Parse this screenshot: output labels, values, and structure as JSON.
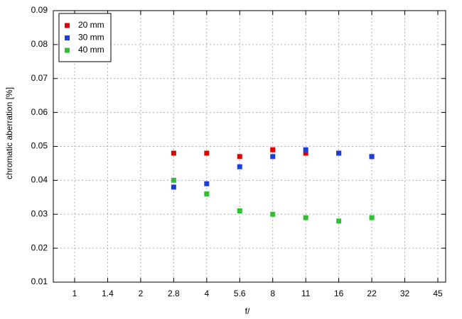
{
  "chart_data": {
    "type": "scatter",
    "x_label": "f/",
    "y_label": "chromatic aberration [%]",
    "categories": [
      "1",
      "1.4",
      "2",
      "2.8",
      "4",
      "5.6",
      "8",
      "11",
      "16",
      "22",
      "32",
      "45"
    ],
    "series": [
      {
        "name": "20 mm",
        "color": "#e00000",
        "values": [
          null,
          null,
          null,
          0.048,
          0.048,
          0.047,
          0.049,
          0.048,
          0.048,
          0.047,
          null,
          null
        ]
      },
      {
        "name": "30 mm",
        "color": "#1a3fd8",
        "values": [
          null,
          null,
          null,
          0.038,
          0.039,
          0.044,
          0.047,
          0.049,
          0.048,
          0.047,
          null,
          null
        ]
      },
      {
        "name": "40 mm",
        "color": "#30c030",
        "values": [
          null,
          null,
          null,
          0.04,
          0.036,
          0.031,
          0.03,
          0.029,
          0.028,
          0.029,
          null,
          null
        ]
      }
    ],
    "ylim": [
      0.01,
      0.09
    ],
    "yticks": [
      0.01,
      0.02,
      0.03,
      0.04,
      0.05,
      0.06,
      0.07,
      0.08,
      0.09
    ],
    "grid": true,
    "legend": "top-left"
  }
}
